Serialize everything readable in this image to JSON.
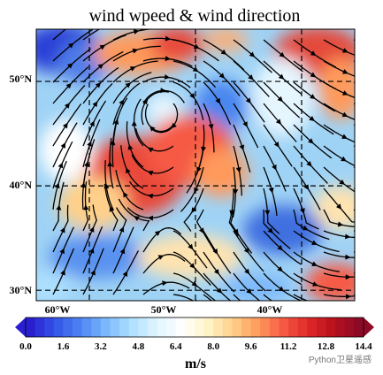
{
  "title": "wind wpeed & wind direction",
  "map": {
    "lat_range": [
      29,
      55
    ],
    "lon_range": [
      -65,
      -35
    ],
    "lat_ticks": [
      {
        "value": 30,
        "label": "30°N"
      },
      {
        "value": 40,
        "label": "40°N"
      },
      {
        "value": 50,
        "label": "50°N"
      }
    ],
    "lon_ticks": [
      {
        "value": -60,
        "label": "60°W"
      },
      {
        "value": -50,
        "label": "50°W"
      },
      {
        "value": -40,
        "label": "40°W"
      }
    ],
    "grid": "dashed",
    "field": "wind speed (shaded) with streamlines"
  },
  "colorbar": {
    "min": 0.0,
    "max": 14.4,
    "ticks": [
      "0.0",
      "1.6",
      "3.2",
      "4.8",
      "6.4",
      "8.0",
      "9.6",
      "11.2",
      "12.8",
      "14.4"
    ],
    "label": "m/s",
    "colors": [
      "#2a1fd0",
      "#3355e8",
      "#4f86f3",
      "#7cb8fb",
      "#aee0ff",
      "#dff5ff",
      "#ffffff",
      "#fff4c8",
      "#ffd08a",
      "#ff9a5c",
      "#f65a45",
      "#e02828",
      "#b8101e",
      "#8c0a26"
    ]
  },
  "watermark": "Python卫星遥感"
}
